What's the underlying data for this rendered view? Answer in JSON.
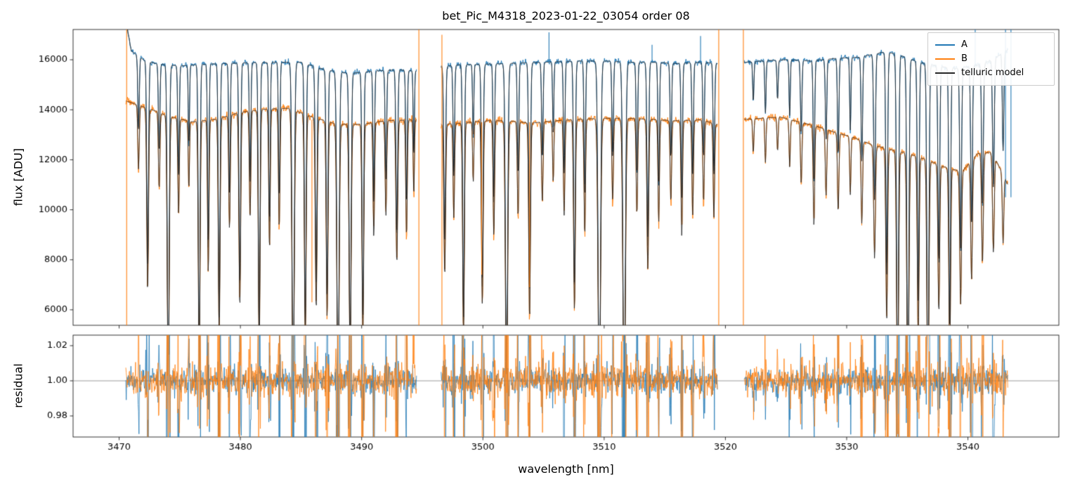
{
  "chart_data": {
    "type": "line",
    "title": "bet_Pic_M4318_2023-01-22_03054  order 08",
    "xlabel": "wavelength [nm]",
    "xlim": [
      3466.2,
      3547.5
    ],
    "xticks": [
      3470,
      3480,
      3490,
      3500,
      3510,
      3520,
      3530,
      3540
    ],
    "xticklabels": [
      "3470",
      "3480",
      "3490",
      "3500",
      "3510",
      "3520",
      "3530",
      "3540"
    ],
    "grid": false,
    "legend_position": "upper right",
    "panels": [
      {
        "ylabel": "flux [ADU]",
        "ylim": [
          5380,
          17210
        ],
        "yticks": [
          6000,
          8000,
          10000,
          12000,
          14000,
          16000
        ],
        "yticklabels": [
          "6000",
          "8000",
          "10000",
          "12000",
          "14000",
          "16000"
        ]
      },
      {
        "ylabel": "residual",
        "ylim": [
          0.968,
          1.026
        ],
        "yticks": [
          0.98,
          1.0,
          1.02
        ],
        "yticklabels": [
          "0.98",
          "1.00",
          "1.02"
        ]
      }
    ],
    "legend": [
      {
        "label": "A",
        "color": "#1f77b4"
      },
      {
        "label": "B",
        "color": "#ff7f0e"
      },
      {
        "label": "telluric model",
        "color": "#262626"
      }
    ],
    "segments": [
      [
        3470.55,
        3494.55
      ],
      [
        3496.55,
        3519.35
      ],
      [
        3521.55,
        3543.3
      ]
    ],
    "series": {
      "A": {
        "color": "#1f77b4",
        "noise": 0.0035,
        "continuum": {
          "x": [
            3470.55,
            3471,
            3472,
            3473,
            3475,
            3477,
            3480,
            3483,
            3485,
            3487,
            3489,
            3491,
            3493,
            3494.5,
            3496.6,
            3498,
            3500,
            3502,
            3505,
            3508,
            3510,
            3512,
            3514,
            3516,
            3518,
            3519.3,
            3521.6,
            3523,
            3525,
            3527,
            3529,
            3531,
            3533,
            3534,
            3536,
            3537.5,
            3539,
            3541,
            3542,
            3543.3
          ],
          "y": [
            17600,
            16350,
            16000,
            15850,
            15750,
            15820,
            15870,
            15900,
            15900,
            15600,
            15450,
            15550,
            15600,
            15550,
            15720,
            15800,
            15820,
            15850,
            15900,
            15950,
            15950,
            15900,
            15900,
            15850,
            15900,
            15850,
            15900,
            15950,
            16000,
            15950,
            16050,
            16100,
            16300,
            16250,
            15900,
            15750,
            15650,
            15800,
            16000,
            16400
          ]
        }
      },
      "B": {
        "color": "#ff7f0e",
        "noise": 0.005,
        "continuum": {
          "x": [
            3470.55,
            3471,
            3472,
            3473,
            3474,
            3476,
            3478,
            3480,
            3482,
            3484,
            3486,
            3488,
            3490,
            3492,
            3494.5,
            3496.6,
            3498,
            3500,
            3502,
            3504,
            3506,
            3508,
            3510,
            3512,
            3514,
            3516,
            3518,
            3519.3,
            3521.6,
            3523,
            3524.5,
            3526,
            3527.5,
            3529,
            3530.5,
            3532,
            3533.5,
            3535,
            3536.5,
            3538,
            3539.5,
            3540.8,
            3542,
            3543.3
          ],
          "y": [
            14350,
            14280,
            14120,
            13950,
            13750,
            13520,
            13620,
            13900,
            14020,
            14060,
            13700,
            13420,
            13420,
            13560,
            13600,
            13420,
            13460,
            13560,
            13560,
            13470,
            13560,
            13620,
            13660,
            13660,
            13610,
            13560,
            13600,
            13420,
            13620,
            13660,
            13710,
            13520,
            13340,
            13100,
            12900,
            12620,
            12420,
            12260,
            12020,
            11720,
            11520,
            12250,
            12300,
            11000
          ]
        }
      },
      "telluric_model": {
        "color": "#262626"
      }
    },
    "absorption_lines": [
      [
        3471.6,
        0.18,
        0.06
      ],
      [
        3472.35,
        0.52,
        0.07
      ],
      [
        3473.3,
        0.22,
        0.06
      ],
      [
        3474.05,
        0.8,
        0.08
      ],
      [
        3474.9,
        0.28,
        0.06
      ],
      [
        3475.75,
        0.2,
        0.05
      ],
      [
        3476.6,
        0.74,
        0.07
      ],
      [
        3477.35,
        0.45,
        0.06
      ],
      [
        3478.25,
        0.64,
        0.07
      ],
      [
        3479.1,
        0.33,
        0.06
      ],
      [
        3479.95,
        0.56,
        0.07
      ],
      [
        3480.8,
        0.3,
        0.06
      ],
      [
        3481.55,
        0.7,
        0.07
      ],
      [
        3482.4,
        0.4,
        0.06
      ],
      [
        3483.2,
        0.34,
        0.06
      ],
      [
        3484.35,
        0.82,
        0.09
      ],
      [
        3485.35,
        0.66,
        0.07
      ],
      [
        3486.25,
        0.56,
        0.07
      ],
      [
        3487.15,
        0.58,
        0.07
      ],
      [
        3488.05,
        0.84,
        0.09
      ],
      [
        3489.05,
        0.72,
        0.08
      ],
      [
        3490.1,
        0.64,
        0.07
      ],
      [
        3491.0,
        0.34,
        0.06
      ],
      [
        3492.0,
        0.28,
        0.06
      ],
      [
        3492.9,
        0.42,
        0.07
      ],
      [
        3493.7,
        0.34,
        0.06
      ],
      [
        3494.3,
        0.22,
        0.05
      ],
      [
        3496.85,
        0.45,
        0.07
      ],
      [
        3497.6,
        0.28,
        0.06
      ],
      [
        3498.4,
        0.64,
        0.07
      ],
      [
        3499.2,
        0.18,
        0.05
      ],
      [
        3499.95,
        0.54,
        0.07
      ],
      [
        3500.9,
        0.34,
        0.06
      ],
      [
        3501.95,
        0.82,
        0.09
      ],
      [
        3502.9,
        0.28,
        0.06
      ],
      [
        3503.85,
        0.58,
        0.07
      ],
      [
        3504.9,
        0.24,
        0.06
      ],
      [
        3505.8,
        0.18,
        0.05
      ],
      [
        3506.7,
        0.28,
        0.06
      ],
      [
        3507.55,
        0.56,
        0.07
      ],
      [
        3508.4,
        0.34,
        0.06
      ],
      [
        3509.6,
        0.86,
        0.1
      ],
      [
        3510.7,
        0.24,
        0.06
      ],
      [
        3511.65,
        0.88,
        0.1
      ],
      [
        3512.7,
        0.28,
        0.06
      ],
      [
        3513.6,
        0.44,
        0.07
      ],
      [
        3514.5,
        0.3,
        0.06
      ],
      [
        3515.5,
        0.24,
        0.06
      ],
      [
        3516.4,
        0.34,
        0.06
      ],
      [
        3517.3,
        0.28,
        0.06
      ],
      [
        3518.2,
        0.24,
        0.06
      ],
      [
        3519.05,
        0.28,
        0.06
      ],
      [
        3522.3,
        0.1,
        0.05
      ],
      [
        3523.3,
        0.13,
        0.05
      ],
      [
        3524.3,
        0.1,
        0.05
      ],
      [
        3525.3,
        0.14,
        0.05
      ],
      [
        3526.25,
        0.18,
        0.06
      ],
      [
        3527.3,
        0.3,
        0.06
      ],
      [
        3528.3,
        0.2,
        0.06
      ],
      [
        3529.3,
        0.24,
        0.06
      ],
      [
        3530.3,
        0.18,
        0.05
      ],
      [
        3531.25,
        0.26,
        0.06
      ],
      [
        3532.3,
        0.36,
        0.07
      ],
      [
        3533.3,
        0.55,
        0.07
      ],
      [
        3534.2,
        0.82,
        0.08
      ],
      [
        3535.05,
        0.86,
        0.08
      ],
      [
        3535.9,
        0.6,
        0.07
      ],
      [
        3536.7,
        0.84,
        0.08
      ],
      [
        3537.6,
        0.5,
        0.07
      ],
      [
        3538.5,
        0.66,
        0.07
      ],
      [
        3539.4,
        0.46,
        0.07
      ],
      [
        3540.3,
        0.4,
        0.07
      ],
      [
        3541.2,
        0.36,
        0.07
      ],
      [
        3542.1,
        0.32,
        0.07
      ],
      [
        3542.9,
        0.24,
        0.06
      ]
    ],
    "spikes": [
      {
        "x": 3470.62,
        "from": 5380,
        "to": 17300,
        "series": "B"
      },
      {
        "x": 3494.72,
        "from": 5380,
        "to": 17300,
        "series": "B"
      },
      {
        "x": 3496.62,
        "from": 5380,
        "to": 17000,
        "series": "B"
      },
      {
        "x": 3519.45,
        "from": 5380,
        "to": 17300,
        "series": "B"
      },
      {
        "x": 3521.48,
        "from": 5380,
        "to": 17300,
        "series": "B"
      },
      {
        "x": 3485.9,
        "from": 6300,
        "to": 13600,
        "series": "B"
      },
      {
        "x": 3499.9,
        "from": 7400,
        "to": 13500,
        "series": "B"
      },
      {
        "x": 3503.85,
        "from": 6900,
        "to": 13500,
        "series": "B"
      },
      {
        "x": 3505.45,
        "from": 15900,
        "to": 17100,
        "series": "A"
      },
      {
        "x": 3513.95,
        "from": 15900,
        "to": 16600,
        "series": "A"
      },
      {
        "x": 3517.95,
        "from": 15900,
        "to": 16950,
        "series": "A"
      },
      {
        "x": 3540.6,
        "from": 15800,
        "to": 17300,
        "series": "A"
      },
      {
        "x": 3543.1,
        "from": 10500,
        "to": 17300,
        "series": "A"
      },
      {
        "x": 3543.55,
        "from": 10500,
        "to": 17300,
        "series": "A"
      }
    ],
    "residual": {
      "hline": 1.0,
      "noise_A": 0.0035,
      "noise_B": 0.0045,
      "core_scatter": 0.13
    },
    "seed": 42
  }
}
